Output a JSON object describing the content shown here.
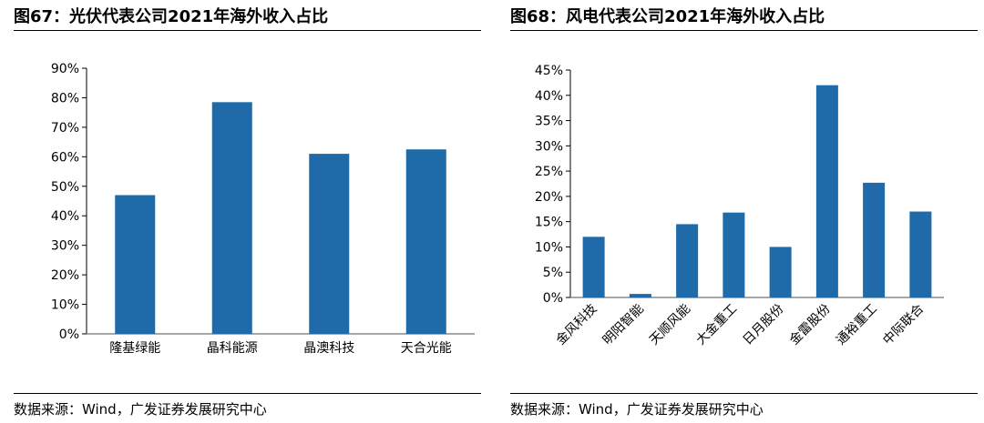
{
  "figures": [
    {
      "title": "图67：光伏代表公司2021年海外收入占比",
      "source": "数据来源：Wind，广发证券发展研究中心"
    },
    {
      "title": "图68：风电代表公司2021年海外收入占比",
      "source": "数据来源：Wind，广发证券发展研究中心"
    }
  ],
  "chart_data": [
    {
      "type": "bar",
      "title": "",
      "xlabel": "",
      "ylabel": "",
      "categories": [
        "隆基绿能",
        "晶科能源",
        "晶澳科技",
        "天合光能"
      ],
      "values": [
        47,
        78.5,
        61,
        62.5
      ],
      "ylim": [
        0,
        90
      ],
      "ytick_step": 10,
      "tick_suffix": "%",
      "bar_color": "#1F6AA8",
      "grid": false,
      "label_rotation": 0
    },
    {
      "type": "bar",
      "title": "",
      "xlabel": "",
      "ylabel": "",
      "categories": [
        "金风科技",
        "明阳智能",
        "天顺风能",
        "大金重工",
        "日月股份",
        "金雷股份",
        "通裕重工",
        "中际联合"
      ],
      "values": [
        12,
        0.7,
        14.5,
        16.8,
        10,
        42,
        22.7,
        17
      ],
      "ylim": [
        0,
        45
      ],
      "ytick_step": 5,
      "tick_suffix": "%",
      "bar_color": "#1F6AA8",
      "grid": false,
      "label_rotation": -45
    }
  ]
}
